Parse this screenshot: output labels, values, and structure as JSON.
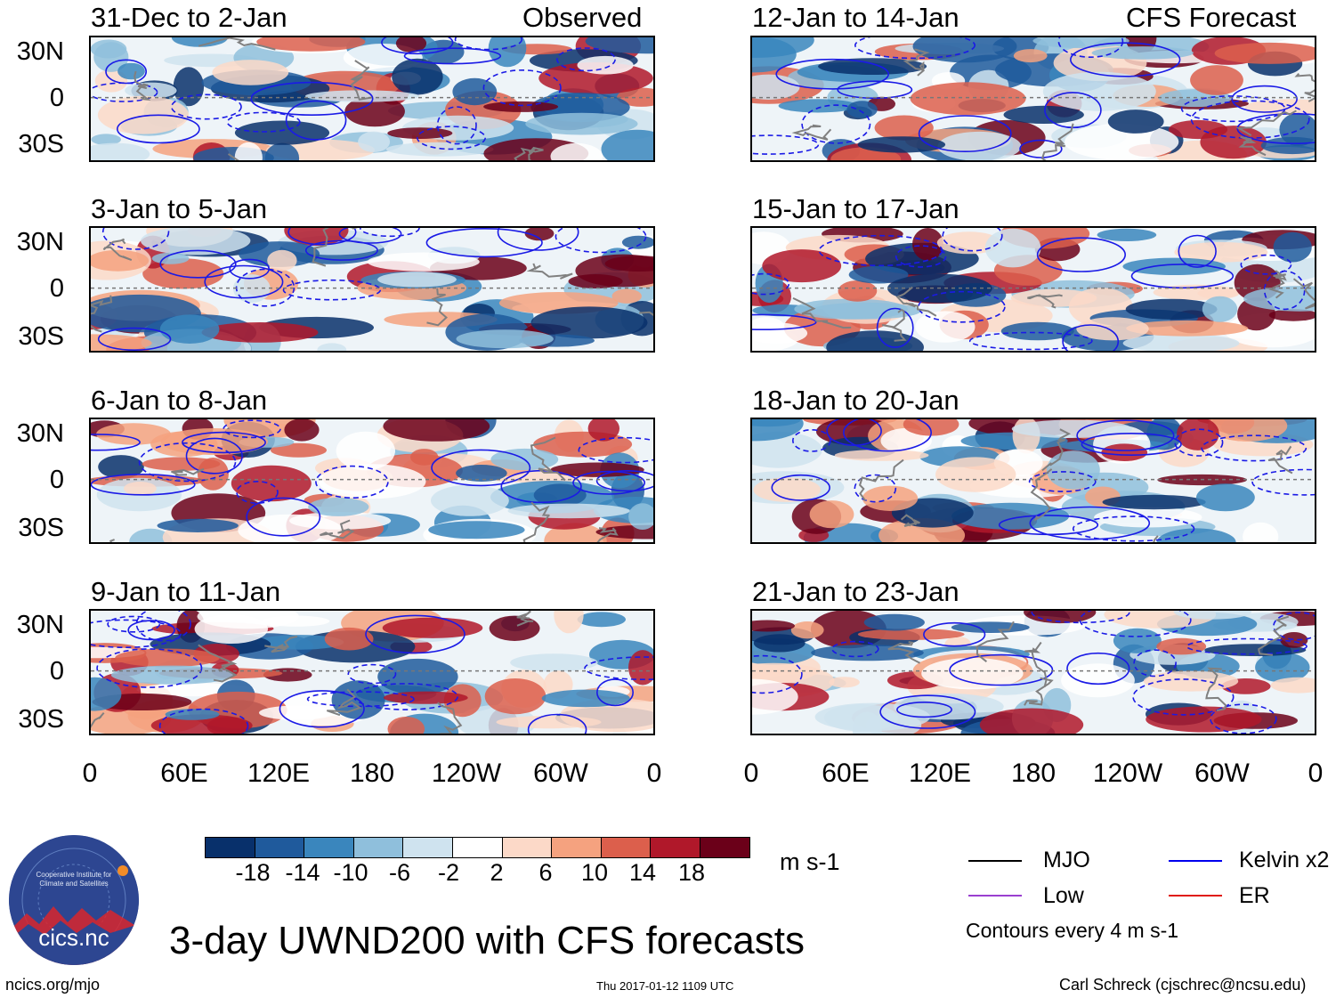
{
  "panels": [
    {
      "title": "31-Dec to 2-Jan",
      "tag": "Observed"
    },
    {
      "title": "12-Jan to 14-Jan",
      "tag": "CFS Forecast"
    },
    {
      "title": "3-Jan to 5-Jan",
      "tag": ""
    },
    {
      "title": "15-Jan to 17-Jan",
      "tag": ""
    },
    {
      "title": "6-Jan to 8-Jan",
      "tag": ""
    },
    {
      "title": "18-Jan to 20-Jan",
      "tag": ""
    },
    {
      "title": "9-Jan to 11-Jan",
      "tag": ""
    },
    {
      "title": "21-Jan to 23-Jan",
      "tag": ""
    }
  ],
  "lat_labels": [
    "30N",
    "0",
    "30S"
  ],
  "lon_labels": [
    "0",
    "60E",
    "120E",
    "180",
    "120W",
    "60W",
    "0"
  ],
  "colorbar": {
    "colors": [
      "#08306b",
      "#1f5a9c",
      "#3a86bd",
      "#8fbfdc",
      "#cfe3ef",
      "#ffffff",
      "#fcd9c8",
      "#f5a27f",
      "#dc5f4c",
      "#b0182a",
      "#6b0019"
    ],
    "labels": [
      "-18",
      "-14",
      "-10",
      "-6",
      "-2",
      "2",
      "6",
      "10",
      "14",
      "18"
    ],
    "units": "m s-1"
  },
  "legend": {
    "items": [
      {
        "label": "MJO",
        "color": "#000000"
      },
      {
        "label": "Kelvin x2",
        "color": "#0000ee"
      },
      {
        "label": "Low",
        "color": "#9a3fd0"
      },
      {
        "label": "ER",
        "color": "#e01b10"
      }
    ],
    "note": "Contours every 4 m s-1"
  },
  "title": "3-day UWND200 with CFS forecasts",
  "footer": {
    "left": "ncics.org/mjo",
    "center": "Thu 2017-01-12 1109 UTC",
    "right": "Carl Schreck (cjschrec@ncsu.edu)"
  },
  "logo": {
    "text": "cics.nc",
    "ring": "Cooperative Institute for Climate and Satellites"
  }
}
